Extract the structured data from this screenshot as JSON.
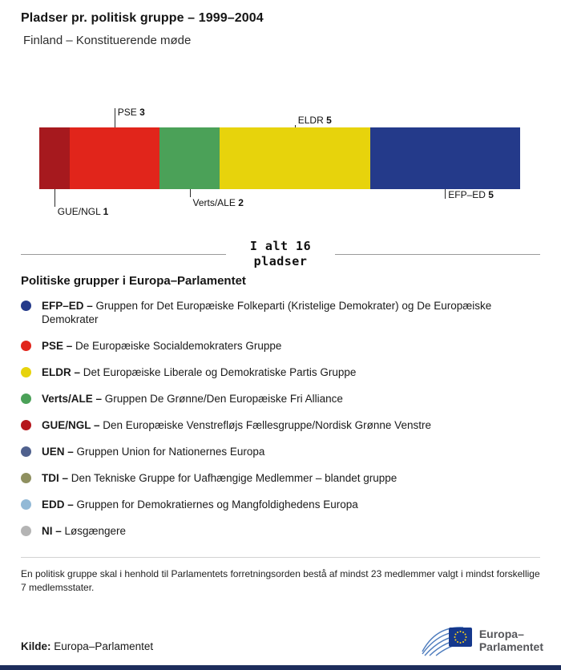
{
  "header": {
    "title": "Pladser pr. politisk gruppe – 1999–2004",
    "subtitle": "Finland – Konstituerende møde"
  },
  "chart_data": {
    "type": "bar",
    "variant": "horizontal-stacked",
    "title": "Pladser pr. politisk gruppe – 1999–2004",
    "subtitle": "Finland – Konstituerende møde",
    "total": 16,
    "total_label": "I alt 16\npladser",
    "unit": "pladser",
    "segments": [
      {
        "name": "GUE/NGL",
        "value": 1,
        "color": "#a6191e",
        "label_side": "below",
        "tick_len": 22,
        "text_gap": 22
      },
      {
        "name": "PSE",
        "value": 3,
        "color": "#e1251b",
        "label_side": "above",
        "tick_len": 24,
        "text_gap": 12
      },
      {
        "name": "Verts/ALE",
        "value": 2,
        "color": "#4ba158",
        "label_side": "below",
        "tick_len": 10,
        "text_gap": 11
      },
      {
        "name": "ELDR",
        "value": 5,
        "color": "#e7d30c",
        "label_side": "above",
        "tick_len": 3,
        "text_gap": 2
      },
      {
        "name": "EFP–ED",
        "value": 5,
        "color": "#243a8a",
        "label_side": "below",
        "tick_len": 12,
        "text_gap": 1
      }
    ]
  },
  "legend": {
    "heading": "Politiske grupper i Europa–Parlamentet",
    "items": [
      {
        "abbr": "EFP–ED –",
        "desc": "Gruppen for Det Europæiske Folkeparti (Kristelige Demokrater) og De Europæiske Demokrater",
        "color": "#243a8a"
      },
      {
        "abbr": "PSE –",
        "desc": "De Europæiske Socialdemokraters Gruppe",
        "color": "#e1251b"
      },
      {
        "abbr": "ELDR –",
        "desc": "Det Europæiske Liberale og Demokratiske Partis Gruppe",
        "color": "#e7d30c"
      },
      {
        "abbr": "Verts/ALE –",
        "desc": "Gruppen De Grønne/Den Europæiske Fri Alliance",
        "color": "#4ba158"
      },
      {
        "abbr": "GUE/NGL –",
        "desc": "Den Europæiske Venstrefløjs Fællesgruppe/Nordisk Grønne Venstre",
        "color": "#b5161c"
      },
      {
        "abbr": "UEN –",
        "desc": "Gruppen Union for Nationernes Europa",
        "color": "#50618e"
      },
      {
        "abbr": "TDI –",
        "desc": "Den Tekniske Gruppe for Uafhængige Medlemmer – blandet gruppe",
        "color": "#8f9060"
      },
      {
        "abbr": "EDD –",
        "desc": "Gruppen for Demokratiernes og Mangfoldighedens Europa",
        "color": "#92b9d6"
      },
      {
        "abbr": "NI –",
        "desc": "Løsgængere",
        "color": "#b4b4b4"
      }
    ]
  },
  "footnote": "En politisk gruppe skal i henhold til Parlamentets forretningsorden bestå af mindst 23 medlemmer valgt i mindst forskellige 7 medlemsstater.",
  "source": {
    "label": "Kilde:",
    "value": "Europa–Parlamentet"
  },
  "logo": {
    "line1": "Europa–",
    "line2": "Parlamentet"
  },
  "colors": {
    "accent_bar": "#1d2d5c",
    "divider": "#9a9a9a"
  }
}
